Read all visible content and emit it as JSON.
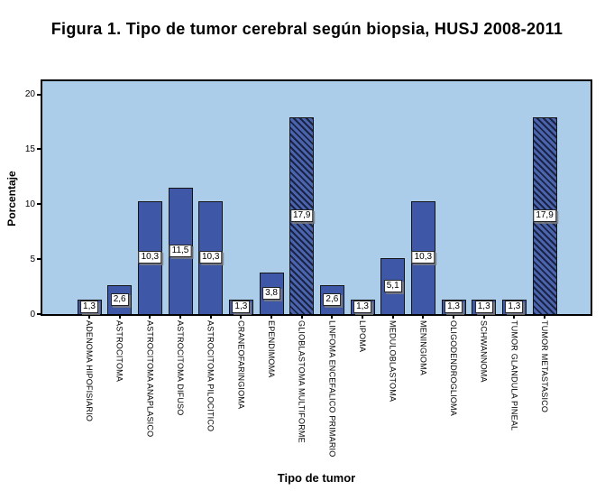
{
  "title": "Figura 1. Tipo de tumor cerebral según biopsia, HUSJ 2008-2011",
  "chart_data": {
    "type": "bar",
    "title": "Figura 1. Tipo de tumor cerebral según biopsia, HUSJ 2008-2011",
    "xlabel": "Tipo de tumor",
    "ylabel": "Porcentaje",
    "ylim": [
      0,
      21.2
    ],
    "yticks": [
      0,
      5,
      10,
      15,
      20
    ],
    "grid": false,
    "legend": false,
    "categories": [
      "ADENOMA HIPOFISIARIO",
      "ASTROCITOMA",
      "ASTROCITOMA ANAPLASICO",
      "ASTROCITOMA DIFUSO",
      "ASTROCITOMA PILOCITICO",
      "CRANEOFARINGIOMA",
      "EPENDIMOMA",
      "GLIOBLASTOMA MULTIFORME",
      "LINFOMA ENCEFALICO PRIMARIO",
      "LIPOMA",
      "MEDULOBLASTOMA",
      "MENINGIOMA",
      "OLIGODENDROGLIOMA",
      "SCHWANNOMA",
      "TUMOR GLANDULA PINEAL",
      "TUMOR METASTASICO"
    ],
    "values": [
      1.3,
      2.6,
      10.3,
      11.5,
      10.3,
      1.3,
      3.8,
      17.9,
      2.6,
      1.3,
      5.1,
      10.3,
      1.3,
      1.3,
      1.3,
      17.9
    ],
    "value_labels": [
      "1,3",
      "2,6",
      "10,3",
      "11,5",
      "10,3",
      "1,3",
      "3,8",
      "17,9",
      "2,6",
      "1,3",
      "5,1",
      "10,3",
      "1,3",
      "1,3",
      "1,3",
      "17,9"
    ],
    "hatched_indices": [
      7,
      15
    ],
    "colors": {
      "bar_fill": "#3e57a7",
      "bar_border": "#141414",
      "hatch_dark": "#1a2344",
      "hatch_light": "#4a64ae",
      "plot_background": "#abcdea",
      "plot_border": "#000000",
      "label_box_background": "#ffffff",
      "label_box_border": "#222222",
      "text": "#000000"
    }
  }
}
